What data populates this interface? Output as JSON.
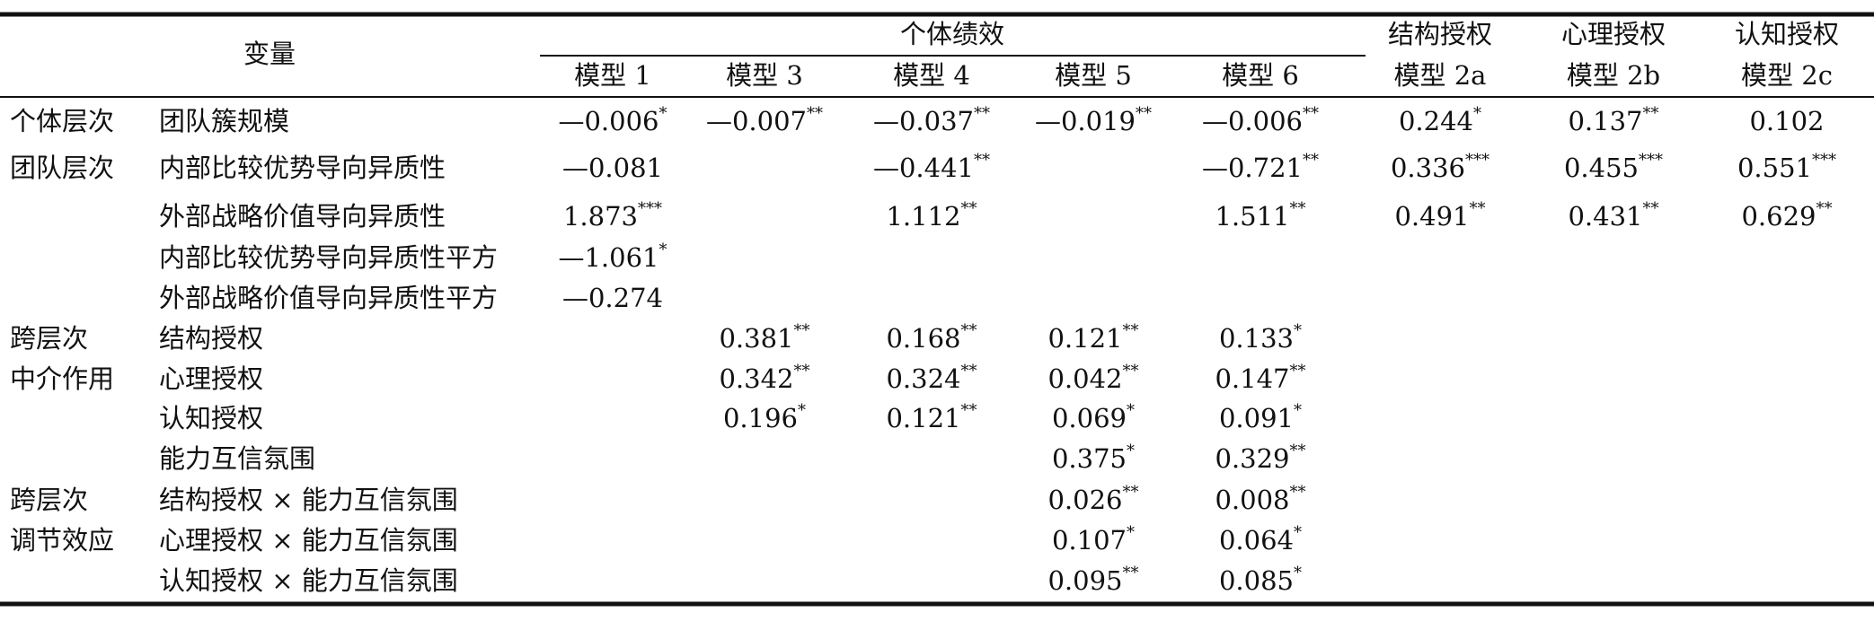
{
  "header": {
    "variable": "变量",
    "group_header": "个体绩效",
    "mediators": [
      "结构授权",
      "心理授权",
      "认知授权"
    ],
    "models": [
      "模型 1",
      "模型 3",
      "模型 4",
      "模型 5",
      "模型 6",
      "模型 2a",
      "模型 2b",
      "模型 2c"
    ]
  },
  "rows": [
    {
      "group": "个体层次",
      "name": "团队簇规模",
      "cells": [
        {
          "v": "—0.006",
          "sig": "*"
        },
        {
          "v": "—0.007",
          "sig": "**"
        },
        {
          "v": "—0.037",
          "sig": "**"
        },
        {
          "v": "—0.019",
          "sig": "**"
        },
        {
          "v": "—0.006",
          "sig": "**"
        },
        {
          "v": "0.244",
          "sig": "*"
        },
        {
          "v": "0.137",
          "sig": "**"
        },
        {
          "v": "0.102"
        }
      ]
    },
    {
      "group": "团队层次",
      "name": "内部比较优势导向异质性",
      "cells": [
        {
          "v": "—0.081"
        },
        null,
        {
          "v": "—0.441",
          "sig": "**"
        },
        null,
        {
          "v": "—0.721",
          "sig": "**"
        },
        {
          "v": "0.336",
          "sig": "***"
        },
        {
          "v": "0.455",
          "sig": "***"
        },
        {
          "v": "0.551",
          "sig": "***"
        }
      ]
    },
    {
      "name": "外部战略价值导向异质性",
      "cells": [
        {
          "v": "1.873",
          "sig": "***"
        },
        null,
        {
          "v": "1.112",
          "sig": "**"
        },
        null,
        {
          "v": "1.511",
          "sig": "**"
        },
        {
          "v": "0.491",
          "sig": "**"
        },
        {
          "v": "0.431",
          "sig": "**"
        },
        {
          "v": "0.629",
          "sig": "**"
        }
      ]
    },
    {
      "name": "内部比较优势导向异质性平方",
      "cells": [
        {
          "v": "—1.061",
          "sig": "*"
        },
        null,
        null,
        null,
        null,
        null,
        null,
        null
      ]
    },
    {
      "name": "外部战略价值导向异质性平方",
      "cells": [
        {
          "v": "—0.274"
        },
        null,
        null,
        null,
        null,
        null,
        null,
        null
      ]
    },
    {
      "group": "跨层次",
      "name": "结构授权",
      "cells": [
        null,
        {
          "v": "0.381",
          "sig": "**"
        },
        {
          "v": "0.168",
          "sig": "**"
        },
        {
          "v": "0.121",
          "sig": "**"
        },
        {
          "v": "0.133",
          "sig": "*"
        },
        null,
        null,
        null
      ]
    },
    {
      "group": "中介作用",
      "name": "心理授权",
      "cells": [
        null,
        {
          "v": "0.342",
          "sig": "**"
        },
        {
          "v": "0.324",
          "sig": "**"
        },
        {
          "v": "0.042",
          "sig": "**"
        },
        {
          "v": "0.147",
          "sig": "**"
        },
        null,
        null,
        null
      ]
    },
    {
      "name": "认知授权",
      "cells": [
        null,
        {
          "v": "0.196",
          "sig": "*"
        },
        {
          "v": "0.121",
          "sig": "**"
        },
        {
          "v": "0.069",
          "sig": "*"
        },
        {
          "v": "0.091",
          "sig": "*"
        },
        null,
        null,
        null
      ]
    },
    {
      "name": "能力互信氛围",
      "cells": [
        null,
        null,
        null,
        {
          "v": "0.375",
          "sig": "*"
        },
        {
          "v": "0.329",
          "sig": "**"
        },
        null,
        null,
        null
      ]
    },
    {
      "group": "跨层次",
      "name": "结构授权 × 能力互信氛围",
      "cells": [
        null,
        null,
        null,
        {
          "v": "0.026",
          "sig": "**"
        },
        {
          "v": "0.008",
          "sig": "**"
        },
        null,
        null,
        null
      ]
    },
    {
      "group": "调节效应",
      "name": "心理授权 × 能力互信氛围",
      "cells": [
        null,
        null,
        null,
        {
          "v": "0.107",
          "sig": "*"
        },
        {
          "v": "0.064",
          "sig": "*"
        },
        null,
        null,
        null
      ]
    },
    {
      "name": "认知授权 × 能力互信氛围",
      "cells": [
        null,
        null,
        null,
        {
          "v": "0.095",
          "sig": "**"
        },
        {
          "v": "0.085",
          "sig": "*"
        },
        null,
        null,
        null
      ]
    }
  ]
}
